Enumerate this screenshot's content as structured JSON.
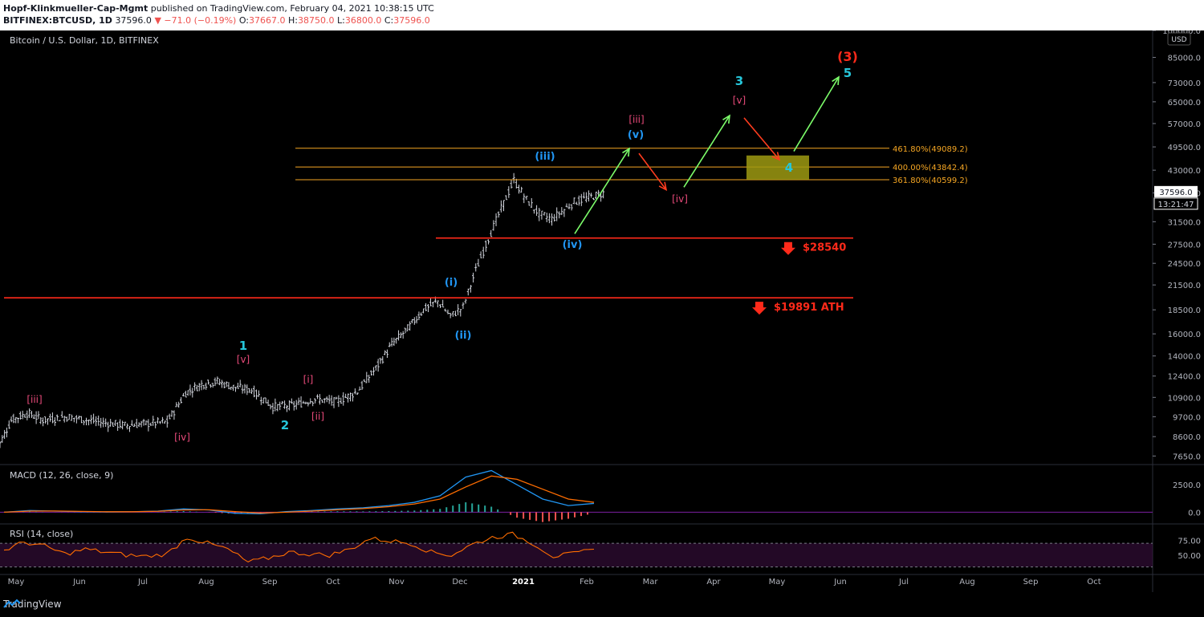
{
  "header": {
    "publisher": "Hopf-Klinkmueller-Cap-Mgmt",
    "published_text": "published on TradingView.com, February 04, 2021 10:38:15 UTC",
    "symbol": "BITFINEX:BTCUSD, 1D",
    "last": "37596.0",
    "change": "▼ −71.0 (−0.19%)",
    "ohlc": {
      "o": "37667.0",
      "h": "38750.0",
      "l": "36800.0",
      "c": "37596.0"
    }
  },
  "main_pane": {
    "title": "Bitcoin / U.S. Dollar, 1D, BITFINEX",
    "currency_badge": "USD",
    "price_badge": "37596.0",
    "countdown_badge": "13:21:47"
  },
  "macd_pane": {
    "title": "MACD (12, 26, close, 9)"
  },
  "rsi_pane": {
    "title": "RSI (14, close)"
  },
  "footer": {
    "brand": "TradingView"
  },
  "colors": {
    "background": "#000000",
    "candles": "#d1d4dc",
    "fib": "#f5a623",
    "red_line": "#ff2a1a",
    "cyan": "#26c6da",
    "blue": "#2196f3",
    "pink": "#e84a7a",
    "green_arrow": "#7cfc6a",
    "red_arrow": "#ff3d1f",
    "target_box": "#9e9a12",
    "macd": "#2196f3",
    "signal": "#ff6d00",
    "rsi": "#ff6d00"
  },
  "chart_data": [
    {
      "type": "candlestick",
      "title": "Bitcoin / U.S. Dollar, 1D, BITFINEX",
      "y_scale": "log",
      "ylim": [
        7300,
        100000
      ],
      "x_ticks": [
        "May",
        "Jun",
        "Jul",
        "Aug",
        "Sep",
        "Oct",
        "Nov",
        "Dec",
        "2021",
        "Feb",
        "Mar",
        "Apr",
        "May",
        "Jun",
        "Jul",
        "Aug",
        "Sep",
        "Oct"
      ],
      "y_ticks": [
        "100000.0",
        "85000.0",
        "73000.0",
        "65000.0",
        "57000.0",
        "49500.0",
        "43000.0",
        "37500.0",
        "31500.0",
        "27500.0",
        "24500.0",
        "21500.0",
        "18500.0",
        "16000.0",
        "14000.0",
        "12400.0",
        "10900.0",
        "9700.0",
        "8600.0",
        "7650.0"
      ],
      "price_path": [
        [
          "May",
          7800
        ],
        [
          "May",
          9500
        ],
        [
          "May",
          9900
        ],
        [
          "May",
          9500
        ],
        [
          "Jun",
          9700
        ],
        [
          "Jun",
          9400
        ],
        [
          "Jul",
          9200
        ],
        [
          "Jul",
          9300
        ],
        [
          "Jul",
          9400
        ],
        [
          "Aug",
          11200
        ],
        [
          "Aug",
          11800
        ],
        [
          "Aug",
          12000
        ],
        [
          "Aug",
          11600
        ],
        [
          "Sep",
          11400
        ],
        [
          "Sep",
          10300
        ],
        [
          "Sep",
          10400
        ],
        [
          "Oct",
          10800
        ],
        [
          "Oct",
          10600
        ],
        [
          "Oct",
          11300
        ],
        [
          "Nov",
          13000
        ],
        [
          "Nov",
          15000
        ],
        [
          "Nov",
          16500
        ],
        [
          "Nov",
          18500
        ],
        [
          "Dec",
          19500
        ],
        [
          "Dec",
          17800
        ],
        [
          "Dec",
          18800
        ],
        [
          "Dec",
          23500
        ],
        [
          "Dec",
          28500
        ],
        [
          "2021",
          34000
        ],
        [
          "2021",
          40500
        ],
        [
          "2021",
          36000
        ],
        [
          "2021",
          33000
        ],
        [
          "2021",
          32000
        ],
        [
          "Feb",
          35500
        ],
        [
          "Feb",
          37600
        ]
      ],
      "levels": [
        {
          "label": "461.80%(49089.2)",
          "value": 49089.2,
          "kind": "fib"
        },
        {
          "label": "400.00%(43842.4)",
          "value": 43842.4,
          "kind": "fib"
        },
        {
          "label": "361.80%(40599.2)",
          "value": 40599.2,
          "kind": "fib"
        },
        {
          "label": "$28540",
          "value": 28540,
          "kind": "support"
        },
        {
          "label": "$19891 ATH",
          "value": 19891,
          "kind": "support"
        }
      ],
      "wave_labels": [
        "[iii]",
        "[iv]",
        "1",
        "[v]",
        "[i]",
        "[ii]",
        "2",
        "(i)",
        "(ii)",
        "(iii)",
        "(iv)",
        "(v)",
        "[iii]",
        "[iv]",
        "3",
        "[v]",
        "4",
        "5",
        "(3)"
      ]
    },
    {
      "type": "line",
      "title": "MACD (12, 26, close, 9)",
      "y_ticks": [
        "2500.0",
        "0.0"
      ],
      "series": [
        {
          "values": [
            0,
            150,
            100,
            50,
            20,
            40,
            100,
            300,
            200,
            -100,
            -150,
            50,
            150,
            300,
            400,
            600,
            900,
            1500,
            3200,
            3800,
            2500,
            1200,
            600,
            800
          ]
        },
        {
          "values": [
            0,
            100,
            110,
            70,
            40,
            40,
            80,
            200,
            220,
            50,
            -80,
            0,
            100,
            220,
            330,
            500,
            750,
            1200,
            2300,
            3300,
            3000,
            2100,
            1200,
            900
          ]
        }
      ]
    },
    {
      "type": "line",
      "title": "RSI (14, close)",
      "y_ticks": [
        "75.00",
        "50.00"
      ],
      "series": [
        {
          "values": [
            58,
            72,
            65,
            52,
            60,
            55,
            50,
            48,
            52,
            80,
            70,
            60,
            38,
            45,
            55,
            52,
            50,
            60,
            78,
            74,
            70,
            55,
            50,
            68,
            80,
            85,
            70,
            48,
            52,
            60
          ]
        }
      ]
    }
  ]
}
